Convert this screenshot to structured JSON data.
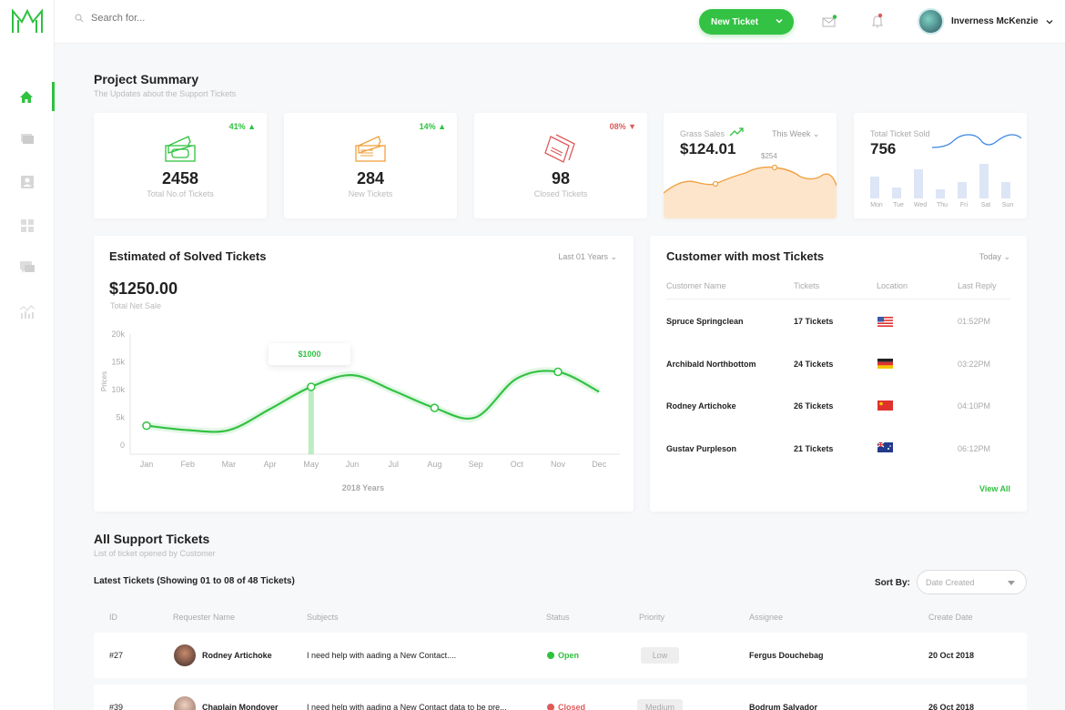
{
  "topbar": {
    "search_placeholder": "Search for...",
    "new_ticket_label": "New Ticket",
    "user_name": "Inverness McKenzie"
  },
  "colors": {
    "accent": "#33c244",
    "negative": "#e05a5a",
    "ticket_orange": "#f0a040",
    "chart_blue": "#3a86e0"
  },
  "summary": {
    "title": "Project Summary",
    "subtitle": "The Updates about the Support Tickets",
    "cards": [
      {
        "value": "2458",
        "label": "Total No.of Tickets",
        "pct": "41%",
        "trend": "up"
      },
      {
        "value": "284",
        "label": "New Tickets",
        "pct": "14%",
        "trend": "up"
      },
      {
        "value": "98",
        "label": "Closed Tickets",
        "pct": "08%",
        "trend": "down"
      }
    ],
    "gross_sales": {
      "label": "Grass Sales",
      "value": "$124.01",
      "filter": "This Week",
      "point_label": "$254"
    },
    "ticket_sold": {
      "label": "Total Ticket Sold",
      "value": "756",
      "days": [
        "Mon",
        "Tue",
        "Wed",
        "Thu",
        "Fri",
        "Sat",
        "Sun"
      ]
    }
  },
  "estimated": {
    "title": "Estimated of Solved Tickets",
    "filter": "Last 01 Years",
    "value": "$1250.00",
    "value_label": "Total Net Sale",
    "tooltip": "$1000"
  },
  "chart_data": {
    "type": "line",
    "x": [
      "Jan",
      "Feb",
      "Mar",
      "Apr",
      "May",
      "Jun",
      "Jul",
      "Aug",
      "Sep",
      "Oct",
      "Nov",
      "Dec"
    ],
    "y_ticks": [
      "20k",
      "15k",
      "10k",
      "5k",
      "0"
    ],
    "ylabel": "Prices",
    "xlabel": "2018 Years",
    "ylim": [
      0,
      20000
    ],
    "values": [
      3500,
      2700,
      2700,
      6500,
      10500,
      12600,
      9800,
      6700,
      5000,
      12000,
      13200,
      9600
    ],
    "highlight_index": 4
  },
  "customers": {
    "title": "Customer with most Tickets",
    "filter": "Today",
    "headers": [
      "Customer Name",
      "Tickets",
      "Location",
      "Last Reply"
    ],
    "rows": [
      {
        "name": "Spruce Springclean",
        "tickets": "17 Tickets",
        "flag": "us",
        "time": "01:52PM"
      },
      {
        "name": "Archibald Northbottom",
        "tickets": "24 Tickets",
        "flag": "de",
        "time": "03:22PM"
      },
      {
        "name": "Rodney Artichoke",
        "tickets": "26 Tickets",
        "flag": "cn",
        "time": "04:10PM"
      },
      {
        "name": "Gustav Purpleson",
        "tickets": "21 Tickets",
        "flag": "au",
        "time": "06:12PM"
      }
    ],
    "view_all": "View All"
  },
  "support": {
    "title": "All Support Tickets",
    "subtitle": "List of ticket opened by Customer",
    "latest": "Latest Tickets (Showing 01 to 08 of 48 Tickets)",
    "sort_label": "Sort By:",
    "sort_value": "Date Created",
    "headers": [
      "ID",
      "Requester Name",
      "Subjects",
      "Status",
      "Priority",
      "Assignee",
      "Create Date"
    ],
    "rows": [
      {
        "id": "#27",
        "name": "Rodney Artichoke",
        "subject": "I need help with aading a New Contact....",
        "status": "Open",
        "priority": "Low",
        "assignee": "Fergus Douchebag",
        "date": "20 Oct 2018"
      },
      {
        "id": "#39",
        "name": "Chaplain Mondover",
        "subject": "I need help with aading a New Contact data to be pre...",
        "status": "Closed",
        "priority": "Medium",
        "assignee": "Bodrum Salvador",
        "date": "26 Oct 2018"
      }
    ]
  }
}
